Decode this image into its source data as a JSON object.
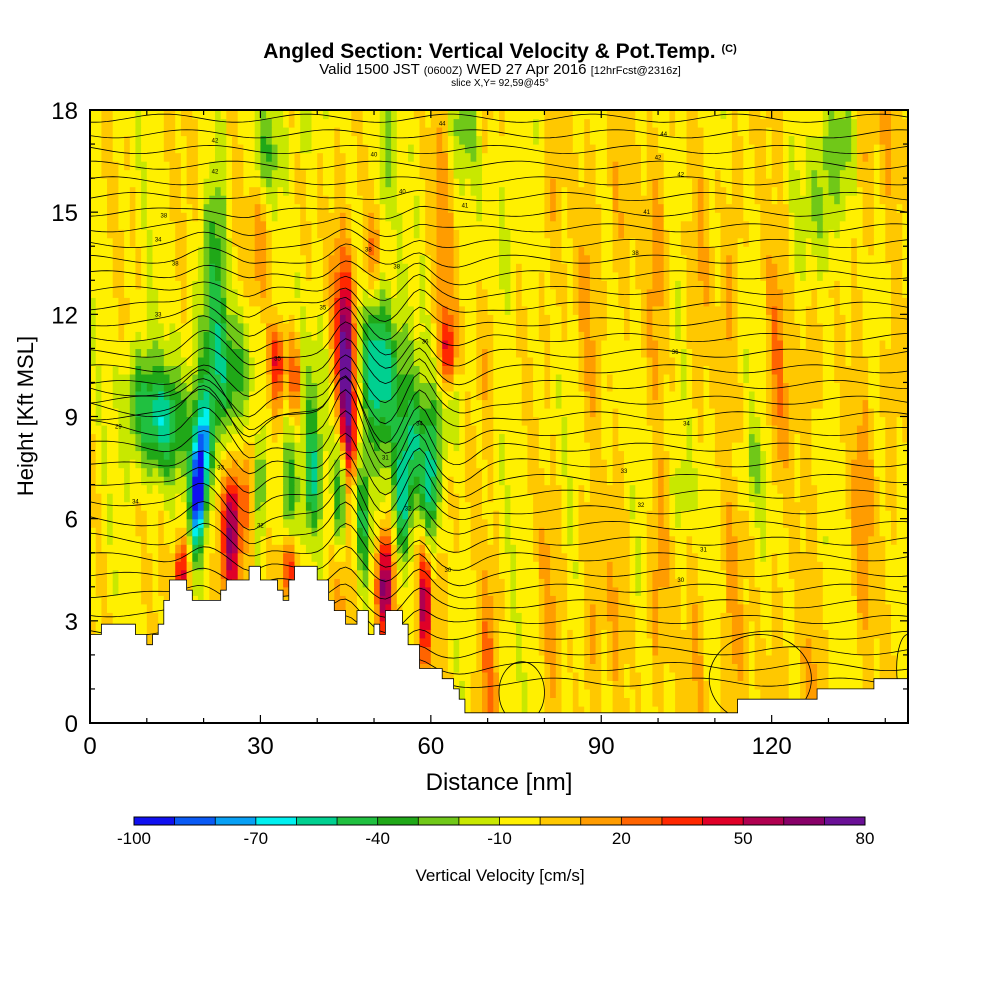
{
  "title": {
    "main": "Angled Section: Vertical Velocity & Pot.Temp.",
    "main_tag": "(C)",
    "valid_pre": "Valid 1500 JST",
    "valid_utc": "(0600Z)",
    "valid_date": "WED 27 Apr 2016",
    "valid_fcst": "[12hrFcst@2316z]",
    "slice": "slice X,Y= 92,59@45°"
  },
  "chart_data": {
    "type": "heatmap",
    "xlabel": "Distance [nm]",
    "ylabel": "Height [Kft MSL]",
    "xlim": [
      0,
      144
    ],
    "ylim": [
      0,
      18
    ],
    "x_ticks": [
      "0",
      "30",
      "60",
      "90",
      "120"
    ],
    "y_ticks": [
      "0",
      "3",
      "6",
      "9",
      "12",
      "15",
      "18"
    ],
    "x_tick_values": [
      0,
      30,
      60,
      90,
      120
    ],
    "y_tick_values": [
      0,
      3,
      6,
      9,
      12,
      15,
      18
    ],
    "colorbar": {
      "label": "Vertical Velocity [cm/s]",
      "tick_labels": [
        "-100",
        "-70",
        "-40",
        "-10",
        "20",
        "50",
        "80"
      ],
      "colors": [
        "#1010f0",
        "#0a5af5",
        "#07a0f5",
        "#00f0f0",
        "#00d090",
        "#20c040",
        "#20a818",
        "#70c818",
        "#c8e800",
        "#fff000",
        "#ffc800",
        "#ff9c00",
        "#ff6400",
        "#ff2800",
        "#e00028",
        "#b00050",
        "#880068",
        "#6a1096"
      ]
    },
    "terrain_kft": [
      [
        0,
        2.6
      ],
      [
        2,
        2.6
      ],
      [
        2,
        2.9
      ],
      [
        8,
        2.9
      ],
      [
        8,
        2.6
      ],
      [
        10,
        2.6
      ],
      [
        10,
        2.3
      ],
      [
        11,
        2.3
      ],
      [
        11,
        2.6
      ],
      [
        12,
        2.6
      ],
      [
        12,
        2.9
      ],
      [
        13,
        2.9
      ],
      [
        13,
        3.6
      ],
      [
        14,
        3.6
      ],
      [
        14,
        4.2
      ],
      [
        17,
        4.2
      ],
      [
        17,
        3.9
      ],
      [
        18,
        3.9
      ],
      [
        18,
        3.6
      ],
      [
        23,
        3.6
      ],
      [
        23,
        3.9
      ],
      [
        24,
        3.9
      ],
      [
        24,
        4.2
      ],
      [
        28,
        4.2
      ],
      [
        28,
        4.6
      ],
      [
        30,
        4.6
      ],
      [
        30,
        4.2
      ],
      [
        33,
        4.2
      ],
      [
        33,
        3.9
      ],
      [
        34,
        3.9
      ],
      [
        34,
        3.6
      ],
      [
        35,
        3.6
      ],
      [
        35,
        4.2
      ],
      [
        36,
        4.2
      ],
      [
        36,
        4.6
      ],
      [
        40,
        4.6
      ],
      [
        40,
        4.2
      ],
      [
        42,
        4.2
      ],
      [
        42,
        3.6
      ],
      [
        43,
        3.6
      ],
      [
        43,
        3.3
      ],
      [
        45,
        3.3
      ],
      [
        45,
        2.9
      ],
      [
        47,
        2.9
      ],
      [
        47,
        3.3
      ],
      [
        49,
        3.3
      ],
      [
        49,
        2.6
      ],
      [
        50,
        2.6
      ],
      [
        50,
        2.9
      ],
      [
        51,
        2.9
      ],
      [
        51,
        2.6
      ],
      [
        52,
        2.6
      ],
      [
        52,
        3.3
      ],
      [
        55,
        3.3
      ],
      [
        55,
        2.9
      ],
      [
        56,
        2.9
      ],
      [
        56,
        2.3
      ],
      [
        58,
        2.3
      ],
      [
        58,
        1.6
      ],
      [
        62,
        1.6
      ],
      [
        62,
        1.3
      ],
      [
        64,
        1.3
      ],
      [
        64,
        1.0
      ],
      [
        65,
        1.0
      ],
      [
        65,
        0.7
      ],
      [
        66,
        0.7
      ],
      [
        66,
        0.3
      ],
      [
        114,
        0.3
      ],
      [
        114,
        0.7
      ],
      [
        128,
        0.7
      ],
      [
        128,
        1.0
      ],
      [
        138,
        1.0
      ],
      [
        138,
        1.3
      ],
      [
        144,
        1.3
      ]
    ],
    "theta_labels": [
      {
        "x": 5,
        "y": 8.7,
        "v": "29"
      },
      {
        "x": 8,
        "y": 6.5,
        "v": "34"
      },
      {
        "x": 12,
        "y": 14.2,
        "v": "34"
      },
      {
        "x": 12,
        "y": 12,
        "v": "33"
      },
      {
        "x": 13,
        "y": 14.9,
        "v": "38"
      },
      {
        "x": 15,
        "y": 13.5,
        "v": "38"
      },
      {
        "x": 22,
        "y": 16.2,
        "v": "42"
      },
      {
        "x": 22,
        "y": 17.1,
        "v": "42"
      },
      {
        "x": 23,
        "y": 7.5,
        "v": "33"
      },
      {
        "x": 30,
        "y": 5.8,
        "v": "32"
      },
      {
        "x": 33,
        "y": 10.7,
        "v": "35"
      },
      {
        "x": 41,
        "y": 12.2,
        "v": "35"
      },
      {
        "x": 49,
        "y": 13.9,
        "v": "38"
      },
      {
        "x": 50,
        "y": 16.7,
        "v": "40"
      },
      {
        "x": 52,
        "y": 7.8,
        "v": "31"
      },
      {
        "x": 54,
        "y": 13.4,
        "v": "38"
      },
      {
        "x": 55,
        "y": 15.6,
        "v": "40"
      },
      {
        "x": 56,
        "y": 6.3,
        "v": "32"
      },
      {
        "x": 58,
        "y": 8.8,
        "v": "34"
      },
      {
        "x": 59,
        "y": 11.2,
        "v": "36"
      },
      {
        "x": 62,
        "y": 17.6,
        "v": "44"
      },
      {
        "x": 63,
        "y": 4.5,
        "v": "30"
      },
      {
        "x": 66,
        "y": 15.2,
        "v": "41"
      },
      {
        "x": 94,
        "y": 7.4,
        "v": "33"
      },
      {
        "x": 96,
        "y": 13.8,
        "v": "38"
      },
      {
        "x": 97,
        "y": 6.4,
        "v": "32"
      },
      {
        "x": 98,
        "y": 15.0,
        "v": "41"
      },
      {
        "x": 100,
        "y": 16.6,
        "v": "42"
      },
      {
        "x": 101,
        "y": 17.3,
        "v": "44"
      },
      {
        "x": 103,
        "y": 10.9,
        "v": "36"
      },
      {
        "x": 104,
        "y": 16.1,
        "v": "42"
      },
      {
        "x": 104,
        "y": 4.2,
        "v": "30"
      },
      {
        "x": 105,
        "y": 8.8,
        "v": "34"
      },
      {
        "x": 108,
        "y": 5.1,
        "v": "31"
      }
    ]
  }
}
